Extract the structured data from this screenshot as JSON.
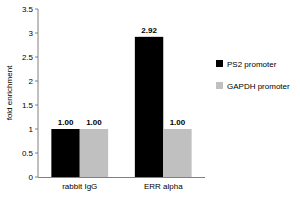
{
  "chart_data": {
    "type": "bar",
    "y_label": "fold enrichment",
    "categories": [
      "rabbit IgG",
      "ERR alpha"
    ],
    "series": [
      {
        "name": "PS2 promoter",
        "color": "#000000",
        "values": [
          1.0,
          2.92
        ],
        "value_labels": [
          "1.00",
          "2.92"
        ]
      },
      {
        "name": "GAPDH promoter",
        "color": "#c0c0c0",
        "values": [
          1.0,
          1.0
        ],
        "value_labels": [
          "1.00",
          "1.00"
        ]
      }
    ],
    "ylim": [
      0,
      3.5
    ],
    "yticks": [
      0,
      0.5,
      1,
      1.5,
      2,
      2.5,
      3,
      3.5
    ],
    "grid": false,
    "legend": "right",
    "data_labels": true
  }
}
